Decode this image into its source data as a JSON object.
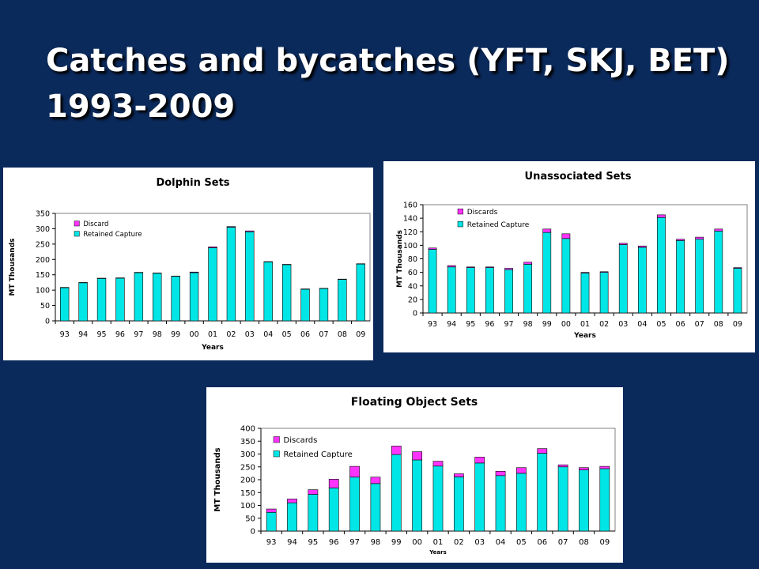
{
  "slide": {
    "title_line1": "Catches and bycatches (YFT, SKJ, BET)",
    "title_line2": "1993-2009"
  },
  "colors": {
    "background": "#0b2a5c",
    "retained": "#00e5e5",
    "discard": "#ff33ff",
    "plot_area": "#ffffff"
  },
  "chart_data": [
    {
      "id": "dolphin",
      "type": "bar",
      "stacked": true,
      "title": "Dolphin Sets",
      "xlabel": "Years",
      "ylabel": "MT Thousands",
      "categories": [
        "93",
        "94",
        "95",
        "96",
        "97",
        "98",
        "99",
        "00",
        "01",
        "02",
        "03",
        "04",
        "05",
        "06",
        "07",
        "08",
        "09"
      ],
      "ylim": [
        0,
        350
      ],
      "yticks": [
        0,
        50,
        100,
        150,
        200,
        250,
        300,
        350
      ],
      "grid": false,
      "legend": "top-left",
      "series": [
        {
          "name": "Retained Capture",
          "color": "#00e5e5",
          "values": [
            108,
            124,
            138,
            139,
            157,
            155,
            145,
            157,
            238,
            305,
            290,
            192,
            183,
            103,
            105,
            135,
            185
          ]
        },
        {
          "name": "Discard",
          "color": "#ff33ff",
          "values": [
            1,
            1,
            1,
            1,
            1,
            1,
            1,
            2,
            3,
            2,
            3,
            1,
            1,
            1,
            1,
            1,
            1
          ]
        }
      ]
    },
    {
      "id": "unassociated",
      "type": "bar",
      "stacked": true,
      "title": "Unassociated Sets",
      "xlabel": "Years",
      "ylabel": "MT Thousands",
      "categories": [
        "93",
        "94",
        "95",
        "96",
        "97",
        "98",
        "99",
        "00",
        "01",
        "02",
        "03",
        "04",
        "05",
        "06",
        "07",
        "08",
        "09"
      ],
      "ylim": [
        0,
        160
      ],
      "yticks": [
        0,
        20,
        40,
        60,
        80,
        100,
        120,
        140,
        160
      ],
      "grid": false,
      "legend": "top-left",
      "series": [
        {
          "name": "Retained Capture",
          "color": "#00e5e5",
          "values": [
            94,
            68,
            67,
            67,
            64,
            72,
            119,
            110,
            59,
            60,
            101,
            97,
            141,
            107,
            109,
            121,
            66
          ]
        },
        {
          "name": "Discards",
          "color": "#ff33ff",
          "values": [
            2,
            2,
            1,
            1,
            2,
            3,
            5,
            7,
            1,
            1,
            2,
            2,
            4,
            2,
            3,
            3,
            1
          ]
        }
      ]
    },
    {
      "id": "floating",
      "type": "bar",
      "stacked": true,
      "title": "Floating Object Sets",
      "xlabel": "Years",
      "ylabel": "MT Thousands",
      "categories": [
        "93",
        "94",
        "95",
        "96",
        "97",
        "98",
        "99",
        "00",
        "01",
        "02",
        "03",
        "04",
        "05",
        "06",
        "07",
        "08",
        "09"
      ],
      "ylim": [
        0,
        400
      ],
      "yticks": [
        0,
        50,
        100,
        150,
        200,
        250,
        300,
        350,
        400
      ],
      "grid": false,
      "legend": "top-left",
      "series": [
        {
          "name": "Retained Capture",
          "color": "#00e5e5",
          "values": [
            73,
            110,
            143,
            168,
            210,
            185,
            298,
            277,
            253,
            211,
            265,
            216,
            225,
            303,
            250,
            238,
            243
          ]
        },
        {
          "name": "Discards",
          "color": "#ff33ff",
          "values": [
            13,
            15,
            18,
            34,
            42,
            25,
            33,
            32,
            19,
            12,
            23,
            17,
            22,
            18,
            8,
            9,
            9
          ]
        }
      ]
    }
  ]
}
